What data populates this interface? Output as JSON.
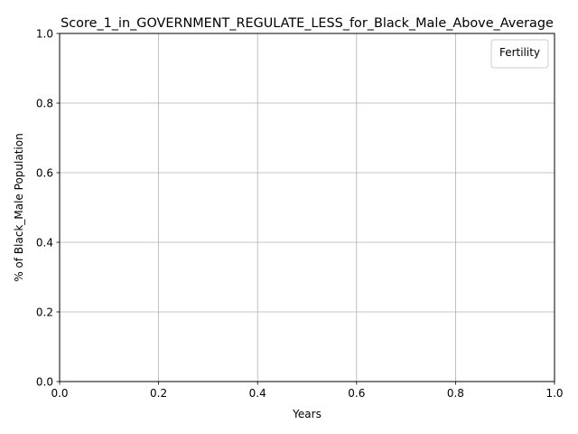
{
  "chart_data": {
    "type": "line",
    "title": "Score_1_in_GOVERNMENT_REGULATE_LESS_for_Black_Male_Above_Average",
    "xlabel": "Years",
    "ylabel": "% of Black_Male Population",
    "xlim": [
      0.0,
      1.0
    ],
    "ylim": [
      0.0,
      1.0
    ],
    "x_ticks": [
      "0.0",
      "0.2",
      "0.4",
      "0.6",
      "0.8",
      "1.0"
    ],
    "y_ticks": [
      "0.0",
      "0.2",
      "0.4",
      "0.6",
      "0.8",
      "1.0"
    ],
    "grid": true,
    "legend": {
      "title": "Fertility",
      "placement": "top-right",
      "entries": []
    },
    "series": []
  }
}
